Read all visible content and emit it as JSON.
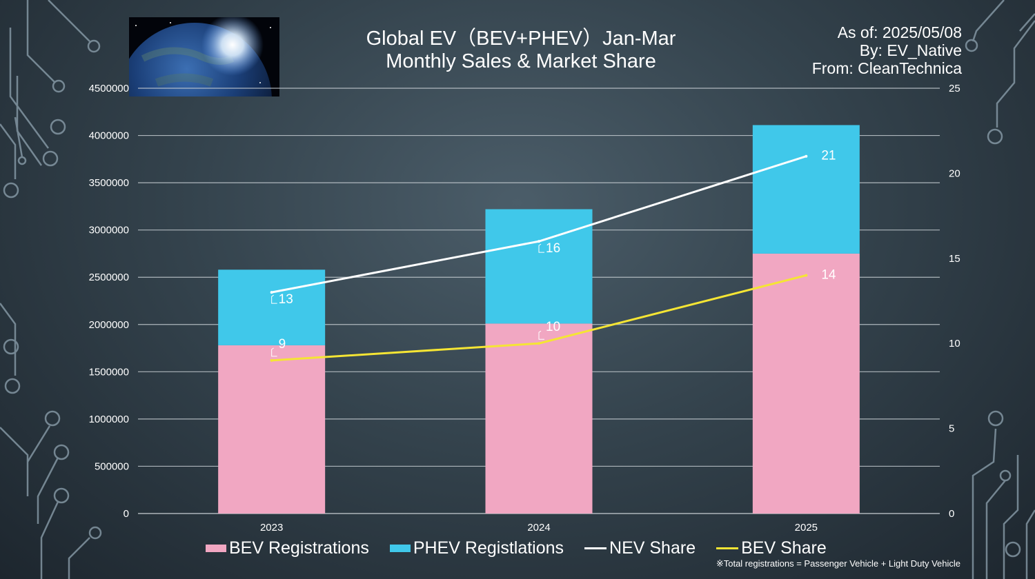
{
  "header": {
    "title_line1": "Global EV（BEV+PHEV）Jan-Mar",
    "title_line2": "Monthly Sales & Market Share",
    "as_of": "As of: 2025/05/08",
    "by": "By: EV_Native",
    "from": "From: CleanTechnica"
  },
  "footnote": "※Total registrations = Passenger Vehicle + Light Duty Vehicle",
  "colors": {
    "bev": "#f1a7c2",
    "phev": "#40c8ea",
    "nev_line": "#ffffff",
    "bev_line": "#f5e534",
    "grid": "#c5ccd1"
  },
  "legend": [
    {
      "label": "BEV Registrations",
      "kind": "box",
      "color": "#f1a7c2"
    },
    {
      "label": "PHEV Registlations",
      "kind": "box",
      "color": "#40c8ea"
    },
    {
      "label": "NEV Share",
      "kind": "line",
      "color": "#ffffff"
    },
    {
      "label": "BEV Share",
      "kind": "line",
      "color": "#f5e534"
    }
  ],
  "chart_data": {
    "type": "bar",
    "stacked": true,
    "categories": [
      "2023",
      "2024",
      "2025"
    ],
    "series": [
      {
        "name": "BEV Registrations",
        "axis": "left",
        "type": "bar",
        "values": [
          1780000,
          2010000,
          2750000
        ]
      },
      {
        "name": "PHEV Registlations",
        "axis": "left",
        "type": "bar",
        "values": [
          800000,
          1210000,
          1360000
        ]
      },
      {
        "name": "NEV Share",
        "axis": "right",
        "type": "line",
        "values": [
          13,
          16,
          21
        ],
        "labels": [
          "13",
          "16",
          "21"
        ]
      },
      {
        "name": "BEV Share",
        "axis": "right",
        "type": "line",
        "values": [
          9,
          10,
          14
        ],
        "labels": [
          "9",
          "10",
          "14"
        ]
      }
    ],
    "y_left": {
      "min": 0,
      "max": 4500000,
      "ticks": [
        "0",
        "500000",
        "1000000",
        "1500000",
        "2000000",
        "2500000",
        "3000000",
        "3500000",
        "4000000",
        "4500000"
      ]
    },
    "y_right": {
      "min": 0,
      "max": 25,
      "ticks": [
        "0",
        "5",
        "10",
        "15",
        "20",
        "25"
      ]
    },
    "grid": true,
    "legend_position": "bottom"
  }
}
